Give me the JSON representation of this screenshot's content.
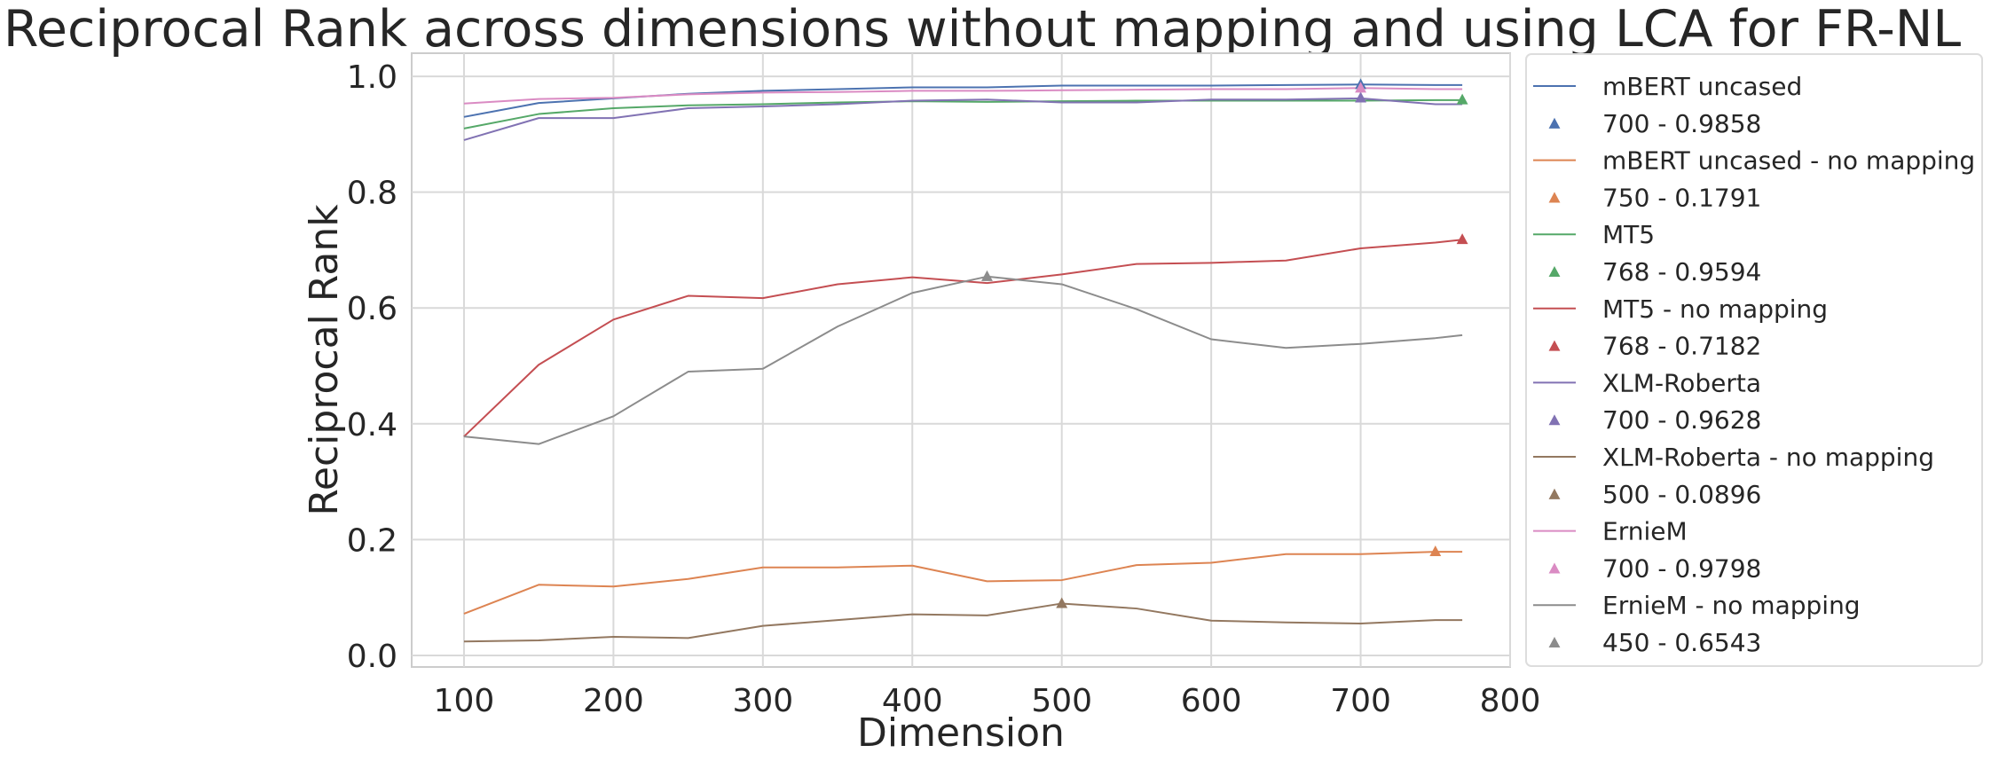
{
  "chart_data": {
    "type": "line",
    "title": "Reciprocal Rank across dimensions without mapping and using LCA for FR-NL",
    "xlabel": "Dimension",
    "ylabel": "Reciprocal Rank",
    "xlim": [
      65,
      800
    ],
    "ylim": [
      -0.02,
      1.04
    ],
    "xticks": [
      100,
      200,
      300,
      400,
      500,
      600,
      700,
      800
    ],
    "yticks": [
      0.0,
      0.2,
      0.4,
      0.6,
      0.8,
      1.0
    ],
    "ytick_labels": [
      "0.0",
      "0.2",
      "0.4",
      "0.6",
      "0.8",
      "1.0"
    ],
    "grid": true,
    "legend_position": "outside-right",
    "x": [
      100,
      150,
      200,
      250,
      300,
      350,
      400,
      450,
      500,
      550,
      600,
      650,
      700,
      750,
      768
    ],
    "series": [
      {
        "name": "mBERT uncased",
        "color": "#4c72b0",
        "values": [
          0.93,
          0.954,
          0.962,
          0.97,
          0.975,
          0.978,
          0.981,
          0.981,
          0.984,
          0.984,
          0.984,
          0.985,
          0.986,
          0.985,
          0.985
        ],
        "best_label": "700 - 0.9858",
        "best": [
          700,
          0.9858
        ]
      },
      {
        "name": "mBERT uncased - no mapping",
        "color": "#dd8452",
        "values": [
          0.072,
          0.122,
          0.119,
          0.132,
          0.152,
          0.152,
          0.155,
          0.128,
          0.13,
          0.156,
          0.16,
          0.175,
          0.175,
          0.179,
          0.179
        ],
        "best_label": "750 - 0.1791",
        "best": [
          750,
          0.1791
        ]
      },
      {
        "name": "MT5",
        "color": "#55a868",
        "values": [
          0.91,
          0.935,
          0.945,
          0.95,
          0.952,
          0.955,
          0.957,
          0.956,
          0.957,
          0.958,
          0.958,
          0.958,
          0.958,
          0.959,
          0.959
        ],
        "best_label": "768 - 0.9594",
        "best": [
          768,
          0.9594
        ]
      },
      {
        "name": "MT5 - no mapping",
        "color": "#c44e52",
        "values": [
          0.378,
          0.502,
          0.58,
          0.621,
          0.617,
          0.641,
          0.653,
          0.643,
          0.658,
          0.676,
          0.678,
          0.682,
          0.703,
          0.713,
          0.718
        ],
        "best_label": "768 - 0.7182",
        "best": [
          768,
          0.7182
        ]
      },
      {
        "name": "XLM-Roberta",
        "color": "#8172b3",
        "values": [
          0.89,
          0.928,
          0.928,
          0.945,
          0.948,
          0.952,
          0.958,
          0.96,
          0.955,
          0.955,
          0.96,
          0.96,
          0.962,
          0.952,
          0.952
        ],
        "best_label": "700 - 0.9628",
        "best": [
          700,
          0.9628
        ]
      },
      {
        "name": "XLM-Roberta - no mapping",
        "color": "#937860",
        "values": [
          0.024,
          0.026,
          0.032,
          0.03,
          0.051,
          0.061,
          0.071,
          0.069,
          0.0896,
          0.081,
          0.06,
          0.057,
          0.055,
          0.061,
          0.061
        ],
        "best_label": "500 - 0.0896",
        "best": [
          500,
          0.0896
        ]
      },
      {
        "name": "ErnieM",
        "color": "#da8bc3",
        "values": [
          0.953,
          0.961,
          0.963,
          0.969,
          0.972,
          0.973,
          0.975,
          0.975,
          0.976,
          0.977,
          0.978,
          0.978,
          0.9798,
          0.978,
          0.978
        ],
        "best_label": "700 - 0.9798",
        "best": [
          700,
          0.9798
        ]
      },
      {
        "name": "ErnieM - no mapping",
        "color": "#8c8c8c",
        "values": [
          0.378,
          0.365,
          0.413,
          0.49,
          0.495,
          0.568,
          0.626,
          0.6543,
          0.641,
          0.598,
          0.546,
          0.531,
          0.538,
          0.548,
          0.553
        ],
        "best_label": "450 - 0.6543",
        "best": [
          450,
          0.6543
        ]
      }
    ]
  }
}
